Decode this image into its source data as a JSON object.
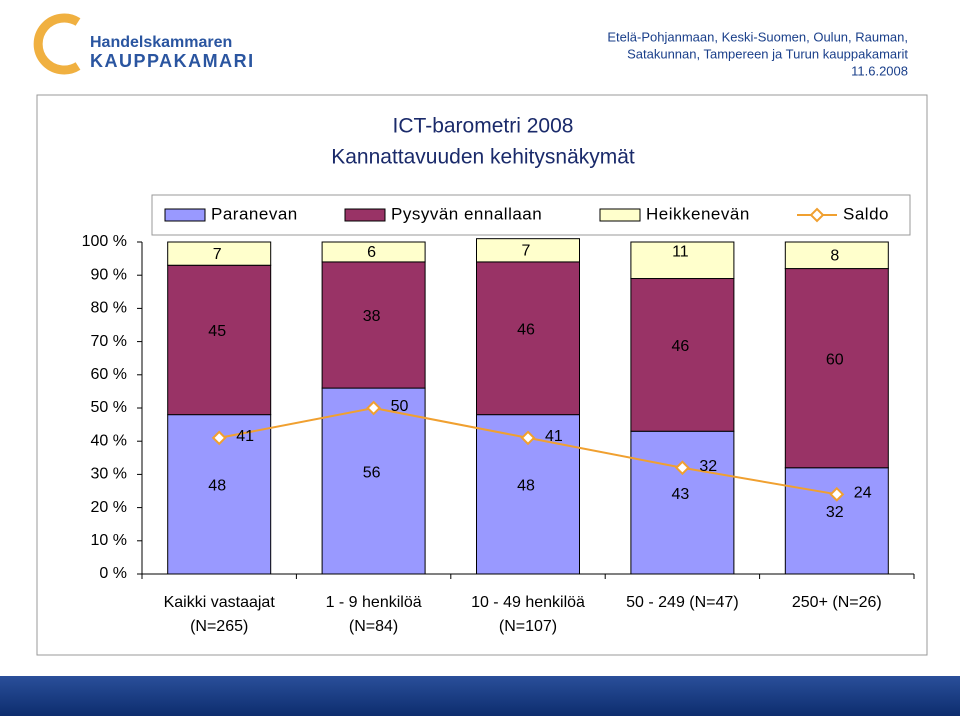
{
  "header": {
    "logo_top": "Handelskammaren",
    "logo_bottom": "KAUPPAKAMARI",
    "org_lines": [
      "Etelä-Pohjanmaan, Keski-Suomen, Oulun, Rauman,",
      "Satakunnan, Tampereen ja Turun kauppakamarit",
      "11.6.2008"
    ]
  },
  "chart_data": {
    "type": "stacked-bar-line",
    "title": "ICT-barometri 2008",
    "subtitle": "Kannattavuuden kehitysnäkymät",
    "categories": [
      [
        "Kaikki vastaajat",
        "(N=265)"
      ],
      [
        "1 - 9 henkilöä",
        "(N=84)"
      ],
      [
        "10 - 49 henkilöä",
        "(N=107)"
      ],
      [
        "50 - 249 (N=47)"
      ],
      [
        "250+ (N=26)"
      ]
    ],
    "series": [
      {
        "name": "Paranevan",
        "color": "#9999ff",
        "type": "bar",
        "values": [
          48,
          56,
          48,
          43,
          32
        ]
      },
      {
        "name": "Pysyvän ennallaan",
        "color": "#993366",
        "type": "bar",
        "values": [
          45,
          38,
          46,
          46,
          60
        ]
      },
      {
        "name": "Heikkenevän",
        "color": "#ffffcc",
        "type": "bar",
        "values": [
          7,
          6,
          7,
          11,
          8
        ]
      },
      {
        "name": "Saldo",
        "color": "#f0a030",
        "type": "line",
        "values": [
          41,
          50,
          41,
          32,
          24
        ]
      }
    ],
    "ylim": [
      0,
      100
    ],
    "yticks": [
      {
        "value": 0,
        "label": "0 %"
      },
      {
        "value": 10,
        "label": "10 %"
      },
      {
        "value": 20,
        "label": "20 %"
      },
      {
        "value": 30,
        "label": "30 %"
      },
      {
        "value": 40,
        "label": "40 %"
      },
      {
        "value": 50,
        "label": "50 %"
      },
      {
        "value": 60,
        "label": "60 %"
      },
      {
        "value": 70,
        "label": "70 %"
      },
      {
        "value": 80,
        "label": "80 %"
      },
      {
        "value": 90,
        "label": "90 %"
      },
      {
        "value": 100,
        "label": "100 %"
      }
    ],
    "legend": "top",
    "grid": false
  }
}
